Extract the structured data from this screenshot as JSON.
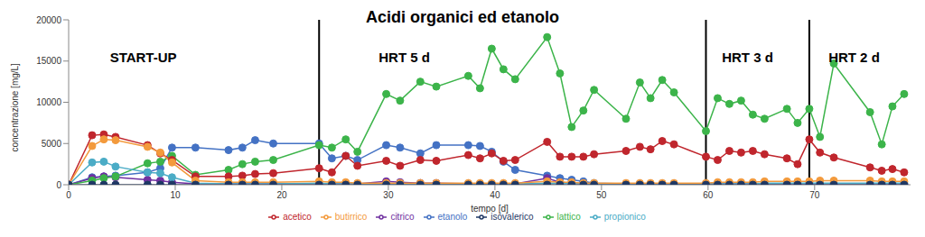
{
  "chart_data": {
    "type": "line",
    "title": "Acidi organici ed etanolo",
    "x_label": "tempo [d]",
    "y_label": "concentrazione [mg/L]",
    "x": [
      0,
      2.2,
      3.3,
      4.4,
      7.4,
      8.6,
      9.7,
      11.9,
      15,
      16.3,
      17.5,
      19.2,
      23.5,
      24.7,
      26,
      27.1,
      29.8,
      31.1,
      33,
      34.5,
      37.5,
      38.6,
      39.7,
      40.8,
      41.9,
      44.9,
      46.1,
      47.2,
      48.3,
      49.3,
      52.3,
      53.6,
      54.6,
      55.7,
      56.8,
      59.8,
      60.9,
      62,
      63.1,
      64.2,
      65.3,
      67.4,
      68.4,
      69.5,
      70.5,
      71.8,
      75.2,
      76.3,
      77.3,
      78.4
    ],
    "series": [
      {
        "name": "etanolo",
        "color": "#4472c4",
        "values": [
          0,
          900,
          1000,
          1100,
          1500,
          2000,
          4500,
          4500,
          4200,
          4500,
          5400,
          5000,
          5000,
          3200,
          3500,
          3000,
          4800,
          4500,
          3800,
          4800,
          4800,
          4700,
          4000,
          2800,
          1800,
          1100,
          800,
          600,
          400,
          200,
          100,
          100,
          100,
          100,
          100,
          0,
          0,
          0,
          0,
          0,
          0,
          0,
          0,
          0,
          0,
          0,
          0,
          0,
          0,
          0
        ]
      },
      {
        "name": "citrico",
        "color": "#7030a0",
        "values": [
          0,
          800,
          1000,
          900,
          600,
          500,
          300,
          100,
          100,
          100,
          100,
          100,
          100,
          100,
          100,
          100,
          400,
          300,
          200,
          200,
          100,
          100,
          100,
          100,
          100,
          800,
          300,
          200,
          100,
          100,
          100,
          100,
          100,
          100,
          100,
          100,
          100,
          100,
          100,
          100,
          100,
          100,
          100,
          100,
          100,
          100,
          100,
          100,
          100,
          100
        ]
      },
      {
        "name": "lattico",
        "color": "#3cb44a",
        "values": [
          0,
          500,
          800,
          1000,
          2600,
          2800,
          3500,
          1200,
          1800,
          2500,
          2800,
          3000,
          4800,
          4500,
          5500,
          4000,
          11000,
          10200,
          12500,
          11900,
          13200,
          11700,
          16500,
          14000,
          12800,
          17900,
          13500,
          7000,
          9000,
          11500,
          8000,
          12400,
          10500,
          12700,
          11200,
          6500,
          10500,
          9800,
          10200,
          8500,
          8000,
          9200,
          7500,
          9200,
          5800,
          14700,
          8800,
          4900,
          9500,
          11000
        ]
      },
      {
        "name": "acetico",
        "color": "#c0262d",
        "values": [
          0,
          6000,
          6100,
          5800,
          4800,
          3800,
          3000,
          1000,
          1000,
          1100,
          1300,
          1400,
          2000,
          1500,
          3500,
          2300,
          2900,
          2300,
          3000,
          2900,
          3600,
          3200,
          3800,
          2900,
          3000,
          5200,
          3400,
          3400,
          3400,
          3700,
          4100,
          4600,
          4300,
          5300,
          4900,
          3400,
          3000,
          4100,
          3900,
          4100,
          3700,
          3200,
          2500,
          5500,
          3900,
          3300,
          2100,
          1700,
          1900,
          1500
        ]
      },
      {
        "name": "propionico",
        "color": "#4bacc6",
        "values": [
          0,
          2700,
          2800,
          2200,
          1500,
          1400,
          900,
          200,
          100,
          100,
          100,
          100,
          200,
          100,
          100,
          100,
          100,
          100,
          100,
          100,
          100,
          100,
          100,
          100,
          100,
          200,
          200,
          200,
          100,
          100,
          100,
          100,
          100,
          100,
          100,
          100,
          100,
          100,
          100,
          100,
          200,
          200,
          200,
          200,
          200,
          200,
          200,
          200,
          200,
          200
        ]
      },
      {
        "name": "butirrico",
        "color": "#f39a3c",
        "values": [
          0,
          4700,
          5500,
          5400,
          4600,
          3900,
          2700,
          500,
          300,
          300,
          300,
          300,
          400,
          300,
          300,
          200,
          200,
          200,
          200,
          200,
          200,
          200,
          200,
          200,
          200,
          400,
          300,
          300,
          200,
          200,
          200,
          200,
          200,
          200,
          200,
          200,
          300,
          300,
          300,
          300,
          400,
          400,
          400,
          400,
          500,
          500,
          500,
          400,
          400,
          400
        ]
      },
      {
        "name": "isovalerico",
        "color": "#1f3864",
        "values": [
          0,
          0,
          0,
          0,
          0,
          0,
          0,
          0,
          0,
          0,
          0,
          0,
          0,
          0,
          0,
          0,
          0,
          0,
          0,
          0,
          0,
          0,
          0,
          0,
          0,
          0,
          0,
          0,
          0,
          0,
          0,
          0,
          0,
          0,
          0,
          0,
          0,
          0,
          0,
          0,
          0,
          0,
          0,
          0,
          0,
          0,
          0,
          0,
          0,
          0
        ]
      }
    ],
    "xlim": [
      0,
      79
    ],
    "xticks": [
      0,
      10,
      20,
      30,
      40,
      50,
      60,
      70
    ],
    "ylim": [
      0,
      20000
    ],
    "yticks": [
      0,
      5000,
      10000,
      15000,
      20000
    ],
    "grid": false,
    "legend": "bottom",
    "marker": "circle",
    "phase_boundaries": [
      23.5,
      59.8,
      69.5
    ],
    "annotations": [
      {
        "text": "START-UP",
        "x": 7,
        "y": 15500
      },
      {
        "text": "HRT 5 d",
        "x": 31.5,
        "y": 15500
      },
      {
        "text": "HRT 3 d",
        "x": 63.7,
        "y": 15500
      },
      {
        "text": "HRT 2 d",
        "x": 73.7,
        "y": 15500
      }
    ]
  }
}
